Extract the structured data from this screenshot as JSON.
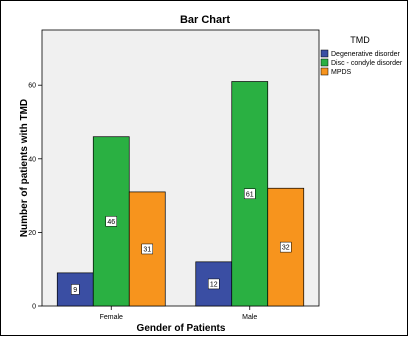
{
  "chart_data": {
    "type": "bar",
    "title": "Bar Chart",
    "xlabel": "Gender of Patients",
    "ylabel": "Number of patients with TMD",
    "categories": [
      "Female",
      "Male"
    ],
    "series": [
      {
        "name": "Degenerative disorder",
        "values": [
          9,
          12
        ],
        "color": "#3a4ea3"
      },
      {
        "name": "Disc - condyle disorder",
        "values": [
          46,
          61
        ],
        "color": "#2ab042"
      },
      {
        "name": "MPDS",
        "values": [
          31,
          32
        ],
        "color": "#f7941d"
      }
    ],
    "data_labels": [
      [
        "9",
        "12"
      ],
      [
        "46",
        "61"
      ],
      [
        "31",
        "32"
      ]
    ],
    "ylim": [
      0,
      75
    ],
    "yticks": [
      0,
      20,
      40,
      60
    ],
    "ytick_labels": [
      "0",
      "20",
      "40",
      "60"
    ],
    "legend": {
      "title": "TMD",
      "placement": "top-right"
    },
    "grid": false,
    "plot_background": "#f0f0f0"
  }
}
